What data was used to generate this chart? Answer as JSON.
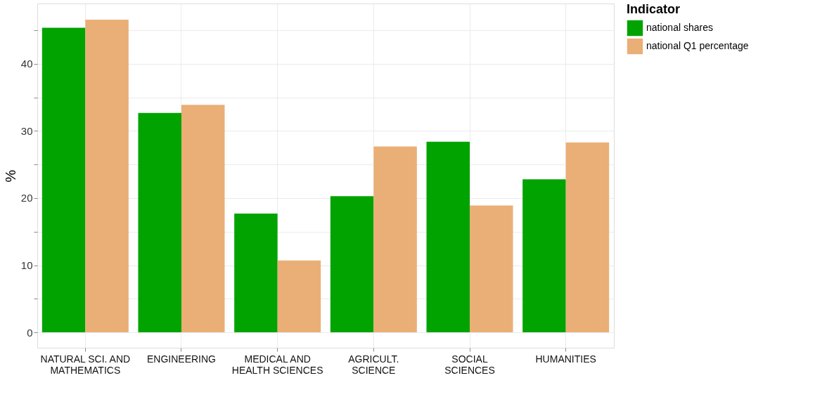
{
  "chart_data": {
    "type": "bar",
    "ylabel": "%",
    "legend_title": "Indicator",
    "categories": [
      "NATURAL SCI. AND\nMATHEMATICS",
      "ENGINEERING",
      "MEDICAL AND\nHEALTH SCIENCES",
      "AGRICULT.\nSCIENCE",
      "SOCIAL\nSCIENCES",
      "HUMANITIES"
    ],
    "series": [
      {
        "name": "national shares",
        "color": "#00a300",
        "values": [
          45.4,
          32.7,
          17.7,
          20.3,
          28.4,
          22.8
        ]
      },
      {
        "name": "national Q1 percentage",
        "color": "#eaaf76",
        "values": [
          46.6,
          33.9,
          10.7,
          27.7,
          18.9,
          28.3
        ]
      }
    ],
    "ylim": [
      -2.3,
      49
    ],
    "yticks": [
      0,
      {
        "value": 5,
        "label": null
      },
      10,
      {
        "value": 15,
        "label": null
      },
      20,
      {
        "value": 25,
        "label": null
      },
      30,
      {
        "value": 35,
        "label": null
      },
      40,
      {
        "value": 45,
        "label": null
      }
    ],
    "grid": true,
    "legend": "right"
  }
}
